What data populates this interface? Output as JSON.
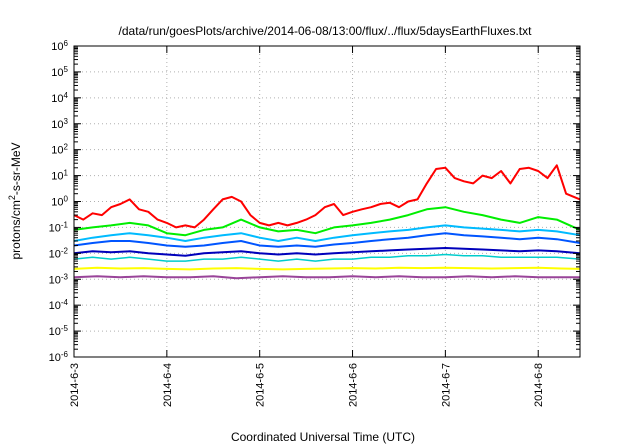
{
  "chart_data": {
    "type": "line",
    "title": "/data/run/goesPlots/archive/2014-06-08/13:00/flux/../flux/5daysEarthFluxes.txt",
    "xlabel": "Coordinated Universal Time (UTC)",
    "ylabel_main": "protons/cm",
    "ylabel_sup": "2",
    "ylabel_tail": "-s-sr-MeV",
    "ylog": true,
    "ylim": [
      1e-06,
      1000000.0
    ],
    "xlim_days": [
      0,
      5.45
    ],
    "grid": true,
    "yticks": [
      {
        "base": "10",
        "exp": "-6",
        "value": -6
      },
      {
        "base": "10",
        "exp": "-5",
        "value": -5
      },
      {
        "base": "10",
        "exp": "-4",
        "value": -4
      },
      {
        "base": "10",
        "exp": "-3",
        "value": -3
      },
      {
        "base": "10",
        "exp": "-2",
        "value": -2
      },
      {
        "base": "10",
        "exp": "-1",
        "value": -1
      },
      {
        "base": "10",
        "exp": "0",
        "value": 0
      },
      {
        "base": "10",
        "exp": "1",
        "value": 1
      },
      {
        "base": "10",
        "exp": "2",
        "value": 2
      },
      {
        "base": "10",
        "exp": "3",
        "value": 3
      },
      {
        "base": "10",
        "exp": "4",
        "value": 4
      },
      {
        "base": "10",
        "exp": "5",
        "value": 5
      },
      {
        "base": "10",
        "exp": "6",
        "value": 6
      }
    ],
    "xticks": [
      {
        "label": "2014-6-3",
        "value": 0
      },
      {
        "label": "2014-6-4",
        "value": 1
      },
      {
        "label": "2014-6-5",
        "value": 2
      },
      {
        "label": "2014-6-6",
        "value": 3
      },
      {
        "label": "2014-6-7",
        "value": 4
      },
      {
        "label": "2014-6-8",
        "value": 5
      }
    ],
    "series": [
      {
        "color": "#ff0000",
        "width": 2,
        "x": [
          0,
          0.1,
          0.2,
          0.3,
          0.4,
          0.5,
          0.6,
          0.7,
          0.8,
          0.9,
          1.0,
          1.1,
          1.2,
          1.3,
          1.4,
          1.5,
          1.6,
          1.7,
          1.8,
          1.9,
          2.0,
          2.1,
          2.2,
          2.3,
          2.4,
          2.5,
          2.6,
          2.7,
          2.8,
          2.9,
          3.0,
          3.1,
          3.2,
          3.3,
          3.4,
          3.5,
          3.6,
          3.7,
          3.8,
          3.9,
          4.0,
          4.1,
          4.2,
          4.3,
          4.4,
          4.5,
          4.6,
          4.7,
          4.8,
          4.9,
          5.0,
          5.1,
          5.2,
          5.3,
          5.45
        ],
        "y": [
          0.3,
          0.2,
          0.35,
          0.3,
          0.6,
          0.8,
          1.2,
          0.5,
          0.4,
          0.2,
          0.15,
          0.1,
          0.12,
          0.1,
          0.2,
          0.5,
          1.2,
          1.5,
          1.0,
          0.3,
          0.15,
          0.12,
          0.15,
          0.12,
          0.15,
          0.2,
          0.3,
          0.6,
          0.8,
          0.3,
          0.4,
          0.5,
          0.6,
          0.8,
          0.9,
          0.6,
          1.0,
          1.2,
          5,
          18,
          20,
          8,
          6,
          5,
          10,
          8,
          15,
          5,
          18,
          20,
          15,
          8,
          25,
          2,
          1.2
        ]
      },
      {
        "color": "#00ee00",
        "width": 2,
        "x": [
          0,
          0.2,
          0.4,
          0.6,
          0.8,
          1.0,
          1.2,
          1.4,
          1.6,
          1.8,
          2.0,
          2.2,
          2.4,
          2.6,
          2.8,
          3.0,
          3.2,
          3.4,
          3.6,
          3.8,
          4.0,
          4.2,
          4.4,
          4.6,
          4.8,
          5.0,
          5.2,
          5.45
        ],
        "y": [
          0.08,
          0.1,
          0.12,
          0.15,
          0.12,
          0.06,
          0.05,
          0.08,
          0.1,
          0.2,
          0.1,
          0.07,
          0.08,
          0.06,
          0.1,
          0.12,
          0.15,
          0.2,
          0.3,
          0.5,
          0.6,
          0.4,
          0.3,
          0.2,
          0.15,
          0.25,
          0.2,
          0.08
        ]
      },
      {
        "color": "#00bbff",
        "width": 2,
        "x": [
          0,
          0.2,
          0.4,
          0.6,
          0.8,
          1.0,
          1.2,
          1.4,
          1.6,
          1.8,
          2.0,
          2.2,
          2.4,
          2.6,
          2.8,
          3.0,
          3.2,
          3.4,
          3.6,
          3.8,
          4.0,
          4.2,
          4.4,
          4.6,
          4.8,
          5.0,
          5.2,
          5.45
        ],
        "y": [
          0.03,
          0.04,
          0.05,
          0.06,
          0.05,
          0.04,
          0.03,
          0.04,
          0.05,
          0.06,
          0.04,
          0.03,
          0.04,
          0.03,
          0.04,
          0.05,
          0.06,
          0.07,
          0.08,
          0.1,
          0.12,
          0.1,
          0.09,
          0.08,
          0.07,
          0.08,
          0.07,
          0.05
        ]
      },
      {
        "color": "#0055ff",
        "width": 2,
        "x": [
          0,
          0.2,
          0.4,
          0.6,
          0.8,
          1.0,
          1.2,
          1.4,
          1.6,
          1.8,
          2.0,
          2.2,
          2.4,
          2.6,
          2.8,
          3.0,
          3.2,
          3.4,
          3.6,
          3.8,
          4.0,
          4.2,
          4.4,
          4.6,
          4.8,
          5.0,
          5.2,
          5.45
        ],
        "y": [
          0.02,
          0.025,
          0.03,
          0.03,
          0.025,
          0.02,
          0.018,
          0.02,
          0.025,
          0.03,
          0.02,
          0.018,
          0.02,
          0.018,
          0.022,
          0.025,
          0.03,
          0.035,
          0.04,
          0.05,
          0.06,
          0.05,
          0.045,
          0.04,
          0.035,
          0.04,
          0.035,
          0.025
        ]
      },
      {
        "color": "#0000bb",
        "width": 2,
        "x": [
          0,
          0.2,
          0.4,
          0.6,
          0.8,
          1.0,
          1.2,
          1.4,
          1.6,
          1.8,
          2.0,
          2.2,
          2.4,
          2.6,
          2.8,
          3.0,
          3.2,
          3.4,
          3.6,
          3.8,
          4.0,
          4.2,
          4.4,
          4.6,
          4.8,
          5.0,
          5.2,
          5.45
        ],
        "y": [
          0.01,
          0.012,
          0.011,
          0.012,
          0.01,
          0.009,
          0.008,
          0.01,
          0.011,
          0.012,
          0.01,
          0.009,
          0.01,
          0.009,
          0.01,
          0.011,
          0.012,
          0.013,
          0.014,
          0.015,
          0.016,
          0.015,
          0.014,
          0.013,
          0.012,
          0.013,
          0.012,
          0.01
        ]
      },
      {
        "color": "#00cccc",
        "width": 1.5,
        "x": [
          0,
          0.2,
          0.4,
          0.6,
          0.8,
          1.0,
          1.2,
          1.4,
          1.6,
          1.8,
          2.0,
          2.2,
          2.4,
          2.6,
          2.8,
          3.0,
          3.2,
          3.4,
          3.6,
          3.8,
          4.0,
          4.2,
          4.4,
          4.6,
          4.8,
          5.0,
          5.2,
          5.45
        ],
        "y": [
          0.006,
          0.007,
          0.006,
          0.007,
          0.006,
          0.005,
          0.005,
          0.006,
          0.006,
          0.007,
          0.006,
          0.005,
          0.006,
          0.005,
          0.006,
          0.006,
          0.007,
          0.007,
          0.008,
          0.008,
          0.009,
          0.008,
          0.008,
          0.007,
          0.007,
          0.007,
          0.007,
          0.006
        ]
      },
      {
        "color": "#ffff00",
        "width": 2,
        "x": [
          0,
          0.25,
          0.5,
          0.75,
          1.0,
          1.25,
          1.5,
          1.75,
          2.0,
          2.25,
          2.5,
          2.75,
          3.0,
          3.25,
          3.5,
          3.75,
          4.0,
          4.25,
          4.5,
          4.75,
          5.0,
          5.25,
          5.45
        ],
        "y": [
          0.0025,
          0.0028,
          0.0026,
          0.0027,
          0.0025,
          0.0024,
          0.0026,
          0.0027,
          0.0025,
          0.0024,
          0.0025,
          0.0026,
          0.0027,
          0.0026,
          0.0028,
          0.0027,
          0.0028,
          0.0027,
          0.0026,
          0.0027,
          0.0028,
          0.0026,
          0.0025
        ]
      },
      {
        "color": "#994499",
        "width": 2,
        "x": [
          0,
          0.25,
          0.5,
          0.75,
          1.0,
          1.25,
          1.5,
          1.75,
          2.0,
          2.25,
          2.5,
          2.75,
          3.0,
          3.25,
          3.5,
          3.75,
          4.0,
          4.25,
          4.5,
          4.75,
          5.0,
          5.25,
          5.45
        ],
        "y": [
          0.0012,
          0.0013,
          0.0012,
          0.0013,
          0.0012,
          0.0012,
          0.0013,
          0.0011,
          0.0012,
          0.0013,
          0.0012,
          0.0012,
          0.0013,
          0.0012,
          0.0013,
          0.0012,
          0.0012,
          0.0013,
          0.0012,
          0.0013,
          0.0012,
          0.0012,
          0.0012
        ]
      }
    ]
  }
}
